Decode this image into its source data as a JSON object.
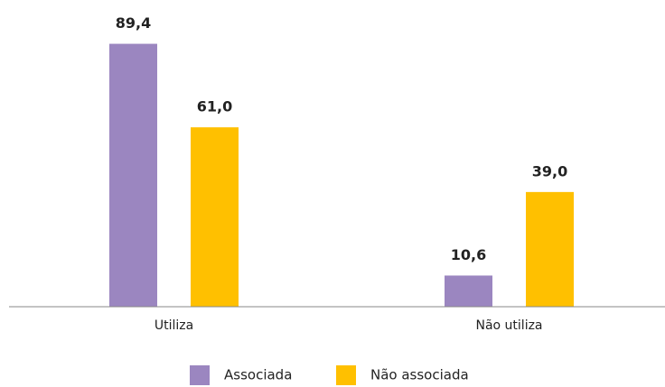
{
  "chart_data": {
    "type": "bar",
    "categories": [
      "Utiliza",
      "Não utiliza"
    ],
    "series": [
      {
        "name": "Associada",
        "color": "#9b86c0",
        "values": [
          89.4,
          10.6
        ],
        "value_labels": [
          "89,4",
          "10,6"
        ]
      },
      {
        "name": "Não associada",
        "color": "#ffc000",
        "values": [
          61.0,
          39.0
        ],
        "value_labels": [
          "61,0",
          "39,0"
        ]
      }
    ],
    "ylim": [
      0,
      100
    ],
    "legend": "bottom"
  }
}
